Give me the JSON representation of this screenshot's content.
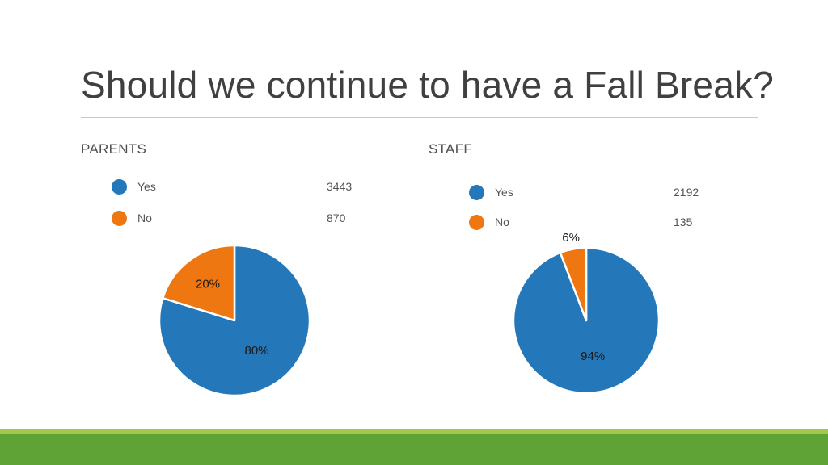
{
  "slide": {
    "title": "Should we continue to have a Fall Break?"
  },
  "colors": {
    "yes": "#2477b8",
    "no": "#ee7711",
    "footer_light": "#a3c94c",
    "footer_dark": "#5fa336"
  },
  "chart_data": [
    {
      "type": "pie",
      "title": "PARENTS",
      "categories": [
        "Yes",
        "No"
      ],
      "values": [
        3443,
        870
      ],
      "percent_labels": [
        "80%",
        "20%"
      ],
      "colors": [
        "#2477b8",
        "#ee7711"
      ],
      "legend_placement": "top"
    },
    {
      "type": "pie",
      "title": "STAFF",
      "categories": [
        "Yes",
        "No"
      ],
      "values": [
        2192,
        135
      ],
      "percent_labels": [
        "94%",
        "6%"
      ],
      "colors": [
        "#2477b8",
        "#ee7711"
      ],
      "legend_placement": "top"
    }
  ]
}
